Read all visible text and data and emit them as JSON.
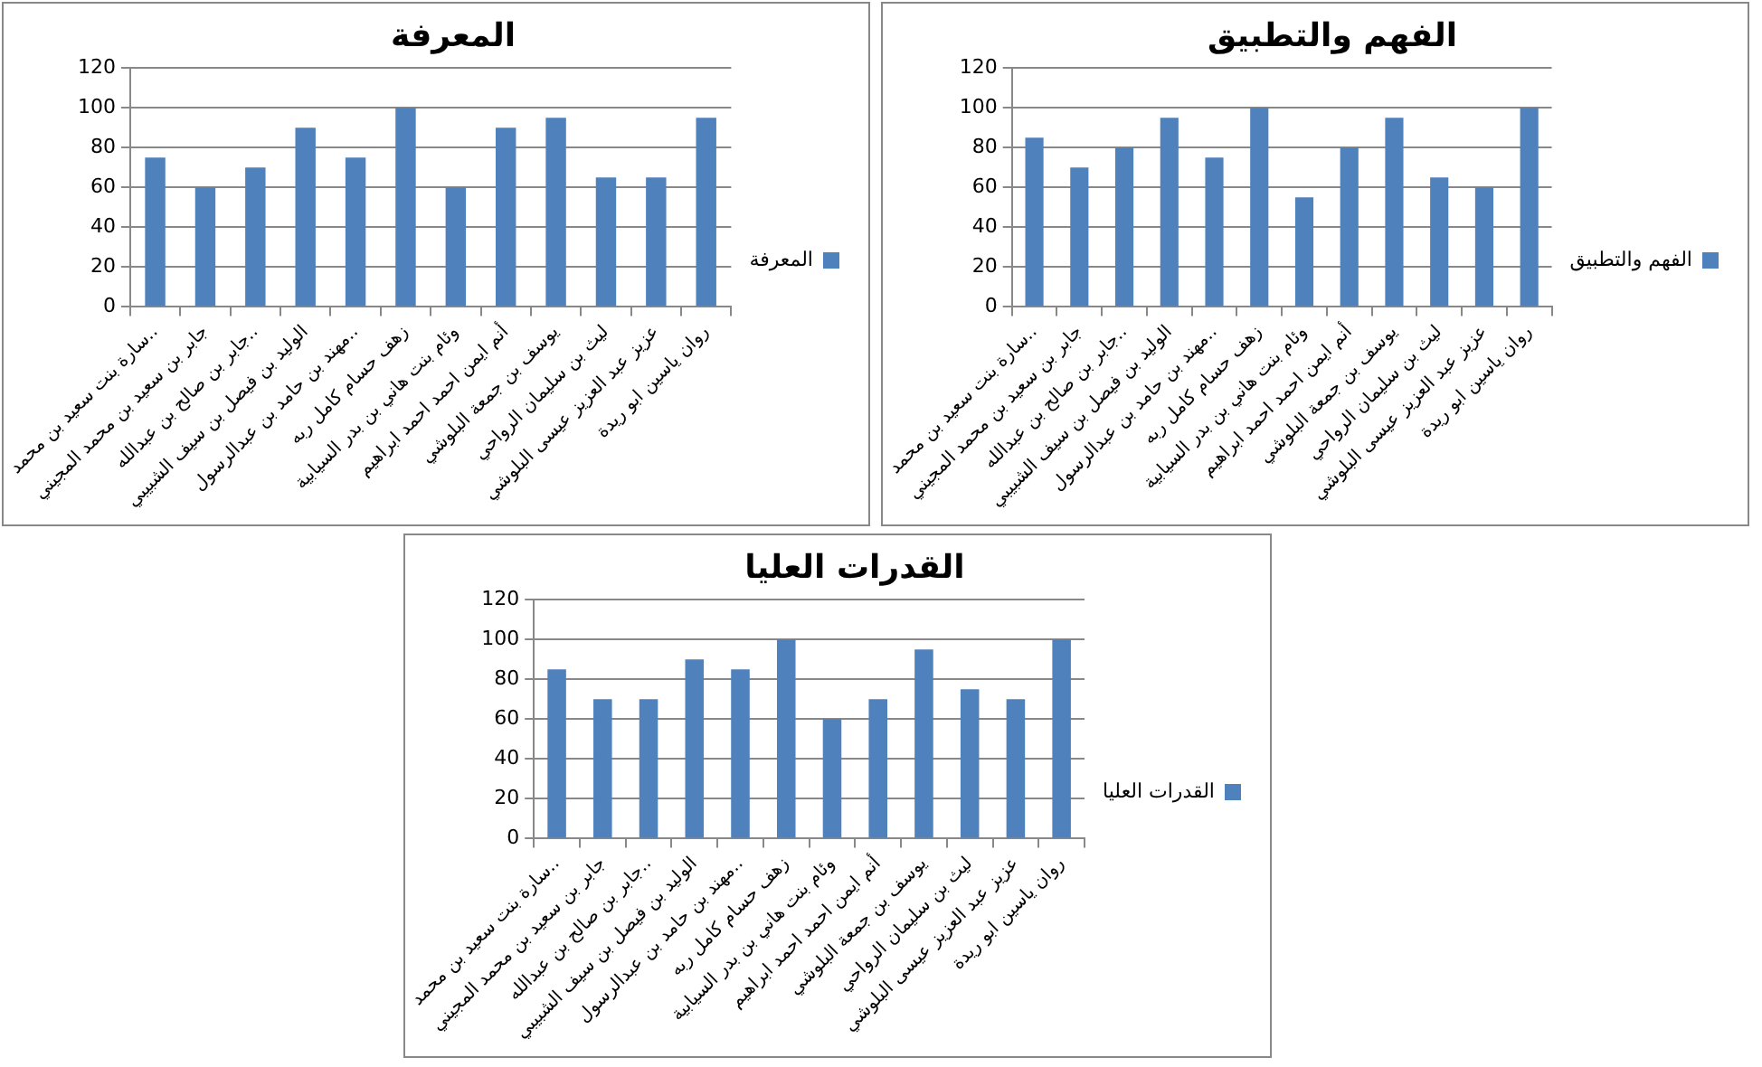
{
  "chart_data": [
    {
      "type": "bar",
      "title": "المعرفة",
      "categories": [
        "سارة بنت سعيد بن محمد..",
        "جابر بن سعيد بن محمد المجيني",
        "جابر بن صالح بن عبدالله..",
        "الوليد بن فيصل بن سيف الشبيبي",
        "مهند بن حامد بن عبدالرسول..",
        "زهف حسام كامل ربه",
        "وئام بنت هاني بن بدر السيابية",
        "أنم ايمن احمد احمد ابراهيم",
        "يوسف بن جمعة البلوشي",
        "ليث بن سليمان الرواحي",
        "عزيز عبد العزيز عيسى البلوشي",
        "روان ياسين ابو ريدة"
      ],
      "series": [
        {
          "name": "المعرفة",
          "color": "#4f81bd",
          "values": [
            75,
            60,
            70,
            90,
            75,
            100,
            60,
            90,
            95,
            65,
            65,
            95
          ]
        }
      ],
      "ylim": [
        0,
        120
      ],
      "yticks": [
        0,
        20,
        40,
        60,
        80,
        100,
        120
      ],
      "grid": "y",
      "legend": "right"
    },
    {
      "type": "bar",
      "title": "الفهم والتطبيق",
      "categories": [
        "سارة بنت سعيد بن محمد..",
        "جابر بن سعيد بن محمد المجيني",
        "جابر بن صالح بن عبدالله..",
        "الوليد بن فيصل بن سيف الشبيبي",
        "مهند بن حامد بن عبدالرسول..",
        "زهف حسام كامل ربه",
        "وئام بنت هاني بن بدر السيابية",
        "أنم ايمن احمد احمد ابراهيم",
        "يوسف بن جمعة البلوشي",
        "ليث بن سليمان الرواحي",
        "عزيز عبد العزيز عيسى البلوشي",
        "روان ياسين ابو ريدة"
      ],
      "series": [
        {
          "name": "الفهم والتطبيق",
          "color": "#4f81bd",
          "values": [
            85,
            70,
            80,
            95,
            75,
            100,
            55,
            80,
            95,
            65,
            60,
            100
          ]
        }
      ],
      "ylim": [
        0,
        120
      ],
      "yticks": [
        0,
        20,
        40,
        60,
        80,
        100,
        120
      ],
      "grid": "y",
      "legend": "right"
    },
    {
      "type": "bar",
      "title": "القدرات العليا",
      "categories": [
        "سارة بنت سعيد بن محمد..",
        "جابر بن سعيد بن محمد المجيني",
        "جابر بن صالح بن عبدالله..",
        "الوليد بن فيصل بن سيف الشبيبي",
        "مهند بن حامد بن عبدالرسول..",
        "زهف حسام كامل ربه",
        "وئام بنت هاني بن بدر السيابية",
        "أنم ايمن احمد احمد ابراهيم",
        "يوسف بن جمعة البلوشي",
        "ليث بن سليمان الرواحي",
        "عزيز عبد العزيز عيسى البلوشي",
        "روان ياسين ابو ريدة"
      ],
      "series": [
        {
          "name": "القدرات العليا",
          "color": "#4f81bd",
          "values": [
            85,
            70,
            70,
            90,
            85,
            100,
            60,
            70,
            95,
            75,
            70,
            100
          ]
        }
      ],
      "ylim": [
        0,
        120
      ],
      "yticks": [
        0,
        20,
        40,
        60,
        80,
        100,
        120
      ],
      "grid": "y",
      "legend": "right"
    }
  ]
}
